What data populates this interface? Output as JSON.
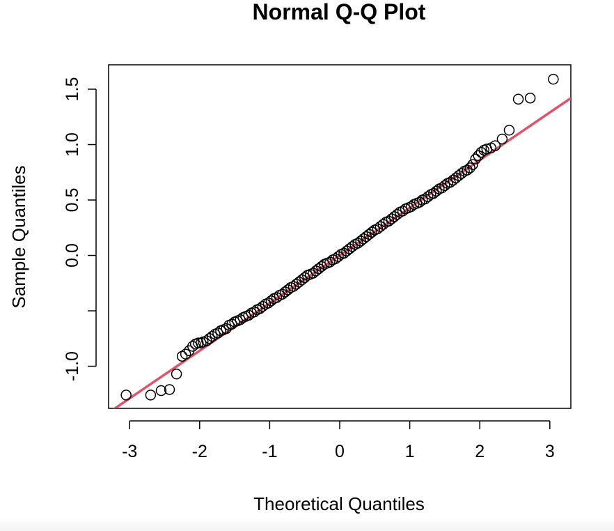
{
  "chart_data": {
    "type": "scatter",
    "title": "Normal Q-Q Plot",
    "xlabel": "Theoretical Quantiles",
    "ylabel": "Sample Quantiles",
    "xlim": [
      -3.3,
      3.3
    ],
    "ylim": [
      -1.38,
      1.72
    ],
    "x_ticks": [
      -3,
      -2,
      -1,
      0,
      1,
      2,
      3
    ],
    "x_tick_labels": [
      "-3",
      "-2",
      "-1",
      "0",
      "1",
      "2",
      "3"
    ],
    "y_ticks": [
      -1.0,
      -0.5,
      0.0,
      0.5,
      1.0,
      1.5
    ],
    "y_tick_labels": [
      "-1.0",
      "",
      "0.0",
      "0.5",
      "1.0",
      "1.5"
    ],
    "grid": false,
    "legend": "none",
    "colors": {
      "reference_line": "#DF536B",
      "points": "#000000"
    },
    "reference_line": {
      "intercept": 0.0,
      "slope": 0.43
    },
    "series": [
      {
        "x": [
          -3.05,
          -2.7,
          -2.55,
          -2.43,
          -2.33,
          -2.25,
          -2.2,
          -2.15,
          -2.1,
          -2.06,
          -2.02,
          -1.98,
          -1.95,
          -1.9,
          -1.86,
          -1.82,
          -1.78,
          -1.74,
          -1.7,
          -1.66,
          -1.62,
          -1.58,
          -1.54,
          -1.5,
          -1.46,
          -1.42,
          -1.38,
          -1.34,
          -1.3,
          -1.26,
          -1.22,
          -1.18,
          -1.14,
          -1.1,
          -1.06,
          -1.02,
          -0.98,
          -0.94,
          -0.9,
          -0.86,
          -0.82,
          -0.78,
          -0.74,
          -0.7,
          -0.66,
          -0.62,
          -0.58,
          -0.54,
          -0.5,
          -0.46,
          -0.42,
          -0.38,
          -0.34,
          -0.3,
          -0.26,
          -0.22,
          -0.18,
          -0.14,
          -0.1,
          -0.06,
          -0.02,
          0.02,
          0.06,
          0.1,
          0.14,
          0.18,
          0.22,
          0.26,
          0.3,
          0.34,
          0.38,
          0.42,
          0.46,
          0.5,
          0.54,
          0.58,
          0.62,
          0.66,
          0.7,
          0.74,
          0.78,
          0.82,
          0.86,
          0.9,
          0.94,
          0.98,
          1.02,
          1.06,
          1.1,
          1.14,
          1.18,
          1.22,
          1.26,
          1.3,
          1.34,
          1.38,
          1.42,
          1.46,
          1.5,
          1.54,
          1.58,
          1.62,
          1.66,
          1.7,
          1.74,
          1.78,
          1.82,
          1.86,
          1.9,
          1.94,
          1.98,
          2.02,
          2.06,
          2.1,
          2.16,
          2.22,
          2.32,
          2.42,
          2.55,
          2.72,
          3.05
        ],
        "y": [
          -1.26,
          -1.26,
          -1.22,
          -1.21,
          -1.07,
          -0.91,
          -0.89,
          -0.86,
          -0.82,
          -0.8,
          -0.79,
          -0.79,
          -0.78,
          -0.77,
          -0.75,
          -0.73,
          -0.71,
          -0.7,
          -0.68,
          -0.67,
          -0.66,
          -0.63,
          -0.62,
          -0.6,
          -0.59,
          -0.58,
          -0.56,
          -0.55,
          -0.54,
          -0.52,
          -0.51,
          -0.49,
          -0.48,
          -0.46,
          -0.44,
          -0.43,
          -0.41,
          -0.39,
          -0.38,
          -0.36,
          -0.35,
          -0.33,
          -0.31,
          -0.29,
          -0.28,
          -0.26,
          -0.24,
          -0.22,
          -0.2,
          -0.18,
          -0.17,
          -0.16,
          -0.14,
          -0.12,
          -0.1,
          -0.08,
          -0.07,
          -0.06,
          -0.04,
          -0.03,
          -0.01,
          0.01,
          0.02,
          0.04,
          0.06,
          0.08,
          0.1,
          0.11,
          0.13,
          0.15,
          0.17,
          0.19,
          0.21,
          0.23,
          0.24,
          0.26,
          0.28,
          0.3,
          0.31,
          0.33,
          0.35,
          0.37,
          0.39,
          0.4,
          0.42,
          0.43,
          0.44,
          0.46,
          0.47,
          0.48,
          0.5,
          0.51,
          0.53,
          0.55,
          0.56,
          0.58,
          0.6,
          0.61,
          0.63,
          0.65,
          0.66,
          0.68,
          0.7,
          0.72,
          0.74,
          0.76,
          0.77,
          0.79,
          0.82,
          0.87,
          0.9,
          0.93,
          0.95,
          0.96,
          0.97,
          0.99,
          1.05,
          1.13,
          1.41,
          1.42,
          1.59
        ]
      }
    ]
  }
}
